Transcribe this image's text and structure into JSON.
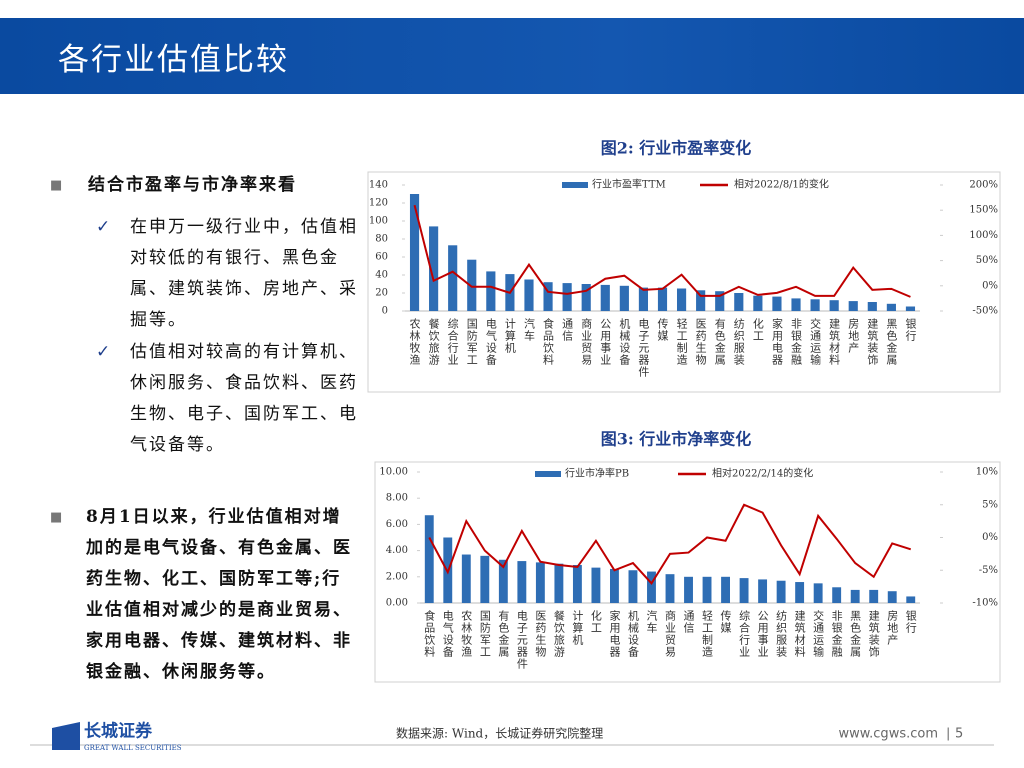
{
  "header": {
    "title": "各行业估值比较"
  },
  "bullets": [
    {
      "text": "结合市盈率与市净率来看",
      "subs": [
        "在申万一级行业中，估值相对较低的有银行、黑色金属、建筑装饰、房地产、采掘等。",
        "估值相对较高的有计算机、休闲服务、食品饮料、医药生物、电子、国防军工、电气设备等。"
      ]
    },
    {
      "text": "8月1日以来，行业估值相对增加的是电气设备、有色金属、医药生物、化工、国防军工等;行业估值相对减少的是商业贸易、家用电器、传媒、建筑材料、非银金融、休闲服务等。"
    }
  ],
  "footer": {
    "source": "数据来源: Wind，长城证券研究院整理",
    "website": "www.cgws.com",
    "page": "5",
    "logo": "长城证券",
    "logo_en": "GREAT WALL SECURITIES"
  },
  "chart_data": [
    {
      "type": "combo",
      "title": "图2: 行业市盈率变化",
      "categories": [
        "农林牧渔",
        "餐饮旅游",
        "综合行业",
        "国防军工",
        "电气设备",
        "计算机",
        "汽车",
        "食品饮料",
        "通信",
        "商业贸易",
        "公用事业",
        "机械设备",
        "电子元器件",
        "传媒",
        "轻工制造",
        "医药生物",
        "有色金属",
        "纺织服装",
        "化工",
        "家用电器",
        "非银金融",
        "交通运输",
        "建筑材料",
        "房地产",
        "建筑装饰",
        "黑色金属",
        "银行"
      ],
      "series": [
        {
          "name": "行业市盈率TTM",
          "color": "#2e6db4",
          "values": [
            130,
            94,
            73,
            57,
            44,
            41,
            35,
            32,
            31,
            30,
            29,
            28,
            26,
            26,
            25,
            23,
            22,
            20,
            17,
            16,
            14,
            13,
            12,
            11,
            10,
            8,
            5
          ]
        },
        {
          "name": "相对2022/8/1的变化",
          "color": "#c00000",
          "axis": "y2",
          "values": [
            160,
            10,
            28,
            -2,
            -2,
            -14,
            42,
            -12,
            -16,
            -10,
            14,
            20,
            -8,
            -6,
            22,
            -20,
            -20,
            -2,
            -18,
            -14,
            -2,
            -20,
            -20,
            36,
            -8,
            -6,
            -22
          ]
        }
      ],
      "ylim": [
        0,
        140
      ],
      "yticks": [
        0,
        20,
        40,
        60,
        80,
        100,
        120,
        140
      ],
      "y2lim": [
        -50,
        200
      ],
      "y2ticks": [
        {
          "value": -50,
          "label": "-50%"
        },
        {
          "value": 0,
          "label": "0%"
        },
        {
          "value": 50,
          "label": "50%"
        },
        {
          "value": 100,
          "label": "100%"
        },
        {
          "value": 150,
          "label": "150%"
        },
        {
          "value": 200,
          "label": "200%"
        }
      ],
      "legend": "top"
    },
    {
      "type": "combo",
      "title": "图3: 行业市净率变化",
      "categories": [
        "食品饮料",
        "电气设备",
        "农林牧渔",
        "国防军工",
        "有色金属",
        "电子元器件",
        "医药生物",
        "餐饮旅游",
        "计算机",
        "化工",
        "家用电器",
        "机械设备",
        "汽车",
        "商业贸易",
        "通信",
        "轻工制造",
        "传媒",
        "综合行业",
        "公用事业",
        "纺织服装",
        "建筑材料",
        "交通运输",
        "非银金融",
        "黑色金属",
        "建筑装饰",
        "房地产",
        "银行"
      ],
      "series": [
        {
          "name": "行业市净率PB",
          "color": "#2e6db4",
          "values": [
            6.7,
            5.0,
            3.7,
            3.6,
            3.3,
            3.2,
            3.1,
            3.0,
            2.9,
            2.7,
            2.6,
            2.5,
            2.4,
            2.2,
            2.0,
            2.0,
            2.0,
            1.9,
            1.8,
            1.7,
            1.6,
            1.5,
            1.2,
            1.0,
            1.0,
            0.9,
            0.5
          ]
        },
        {
          "name": "相对2022/2/14的变化",
          "color": "#c00000",
          "axis": "y2",
          "values": [
            0,
            -5.3,
            2.5,
            -2,
            -4.5,
            1,
            -3.7,
            -4.2,
            -4.5,
            -0.5,
            -5,
            -3.9,
            -7,
            -2.5,
            -2.3,
            0,
            -0.5,
            5,
            3.8,
            -1.2,
            -5.6,
            3.3,
            -0.2,
            -3.9,
            -6,
            -0.9,
            -1.8
          ]
        }
      ],
      "ylim": [
        0,
        10
      ],
      "yticks": [
        {
          "value": 0,
          "label": "0.00"
        },
        {
          "value": 2,
          "label": "2.00"
        },
        {
          "value": 4,
          "label": "4.00"
        },
        {
          "value": 6,
          "label": "6.00"
        },
        {
          "value": 8,
          "label": "8.00"
        },
        {
          "value": 10,
          "label": "10.00"
        }
      ],
      "y2lim": [
        -10,
        10
      ],
      "y2ticks": [
        {
          "value": -10,
          "label": "-10%"
        },
        {
          "value": -5,
          "label": "-5%"
        },
        {
          "value": 0,
          "label": "0%"
        },
        {
          "value": 5,
          "label": "5%"
        },
        {
          "value": 10,
          "label": "10%"
        }
      ],
      "legend": "top"
    }
  ]
}
